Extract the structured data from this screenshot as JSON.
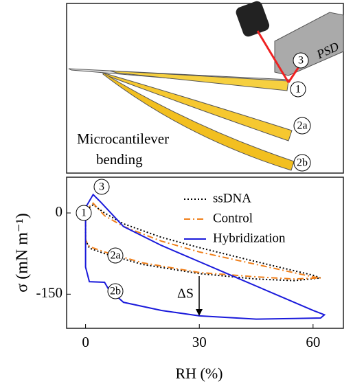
{
  "illustration": {
    "labels": [
      "PSD",
      "3",
      "1",
      "2a",
      "2b",
      "Microcantilever",
      "bending"
    ]
  },
  "chart_data": {
    "type": "line",
    "xlabel": "RH (%)",
    "ylabel": "σ (mN m⁻¹)",
    "xlim": [
      -5,
      68
    ],
    "ylim": [
      -213,
      66
    ],
    "xticks": [
      0,
      30,
      60
    ],
    "yticks": [
      0,
      -150
    ],
    "annotations": [
      "3",
      "1",
      "2a",
      "2b",
      "ΔS"
    ],
    "legend": "upper right",
    "series": [
      {
        "name": "ssDNA",
        "color": "#000000",
        "dash": "dotted",
        "x": [
          0,
          0,
          2,
          5,
          10,
          20,
          30,
          45,
          60,
          62,
          55,
          45,
          30,
          15,
          5,
          1,
          0
        ],
        "values": [
          -50,
          5,
          15,
          0,
          -20,
          -45,
          -64,
          -90,
          -115,
          -120,
          -125,
          -122,
          -112,
          -95,
          -75,
          -65,
          -50
        ]
      },
      {
        "name": "Control",
        "color": "#f07f1a",
        "dash": "dashdot",
        "x": [
          0,
          0,
          2,
          5,
          10,
          20,
          30,
          45,
          60,
          62,
          55,
          45,
          30,
          15,
          5,
          1,
          0
        ],
        "values": [
          -50,
          5,
          18,
          -5,
          -25,
          -52,
          -72,
          -95,
          -118,
          -120,
          -122,
          -118,
          -110,
          -92,
          -72,
          -62,
          -50
        ]
      },
      {
        "name": "Hybridization",
        "color": "#1a1adb",
        "dash": "solid",
        "x": [
          0,
          0,
          2,
          4,
          10,
          20,
          30,
          40,
          50,
          60,
          63,
          62,
          55,
          45,
          30,
          20,
          10,
          6,
          5,
          1,
          0,
          0
        ],
        "values": [
          -60,
          10,
          34,
          20,
          -25,
          -60,
          -90,
          -120,
          -150,
          -180,
          -188,
          -194,
          -195,
          -196,
          -190,
          -180,
          -165,
          -140,
          -128,
          -127,
          -100,
          -60
        ]
      }
    ]
  }
}
